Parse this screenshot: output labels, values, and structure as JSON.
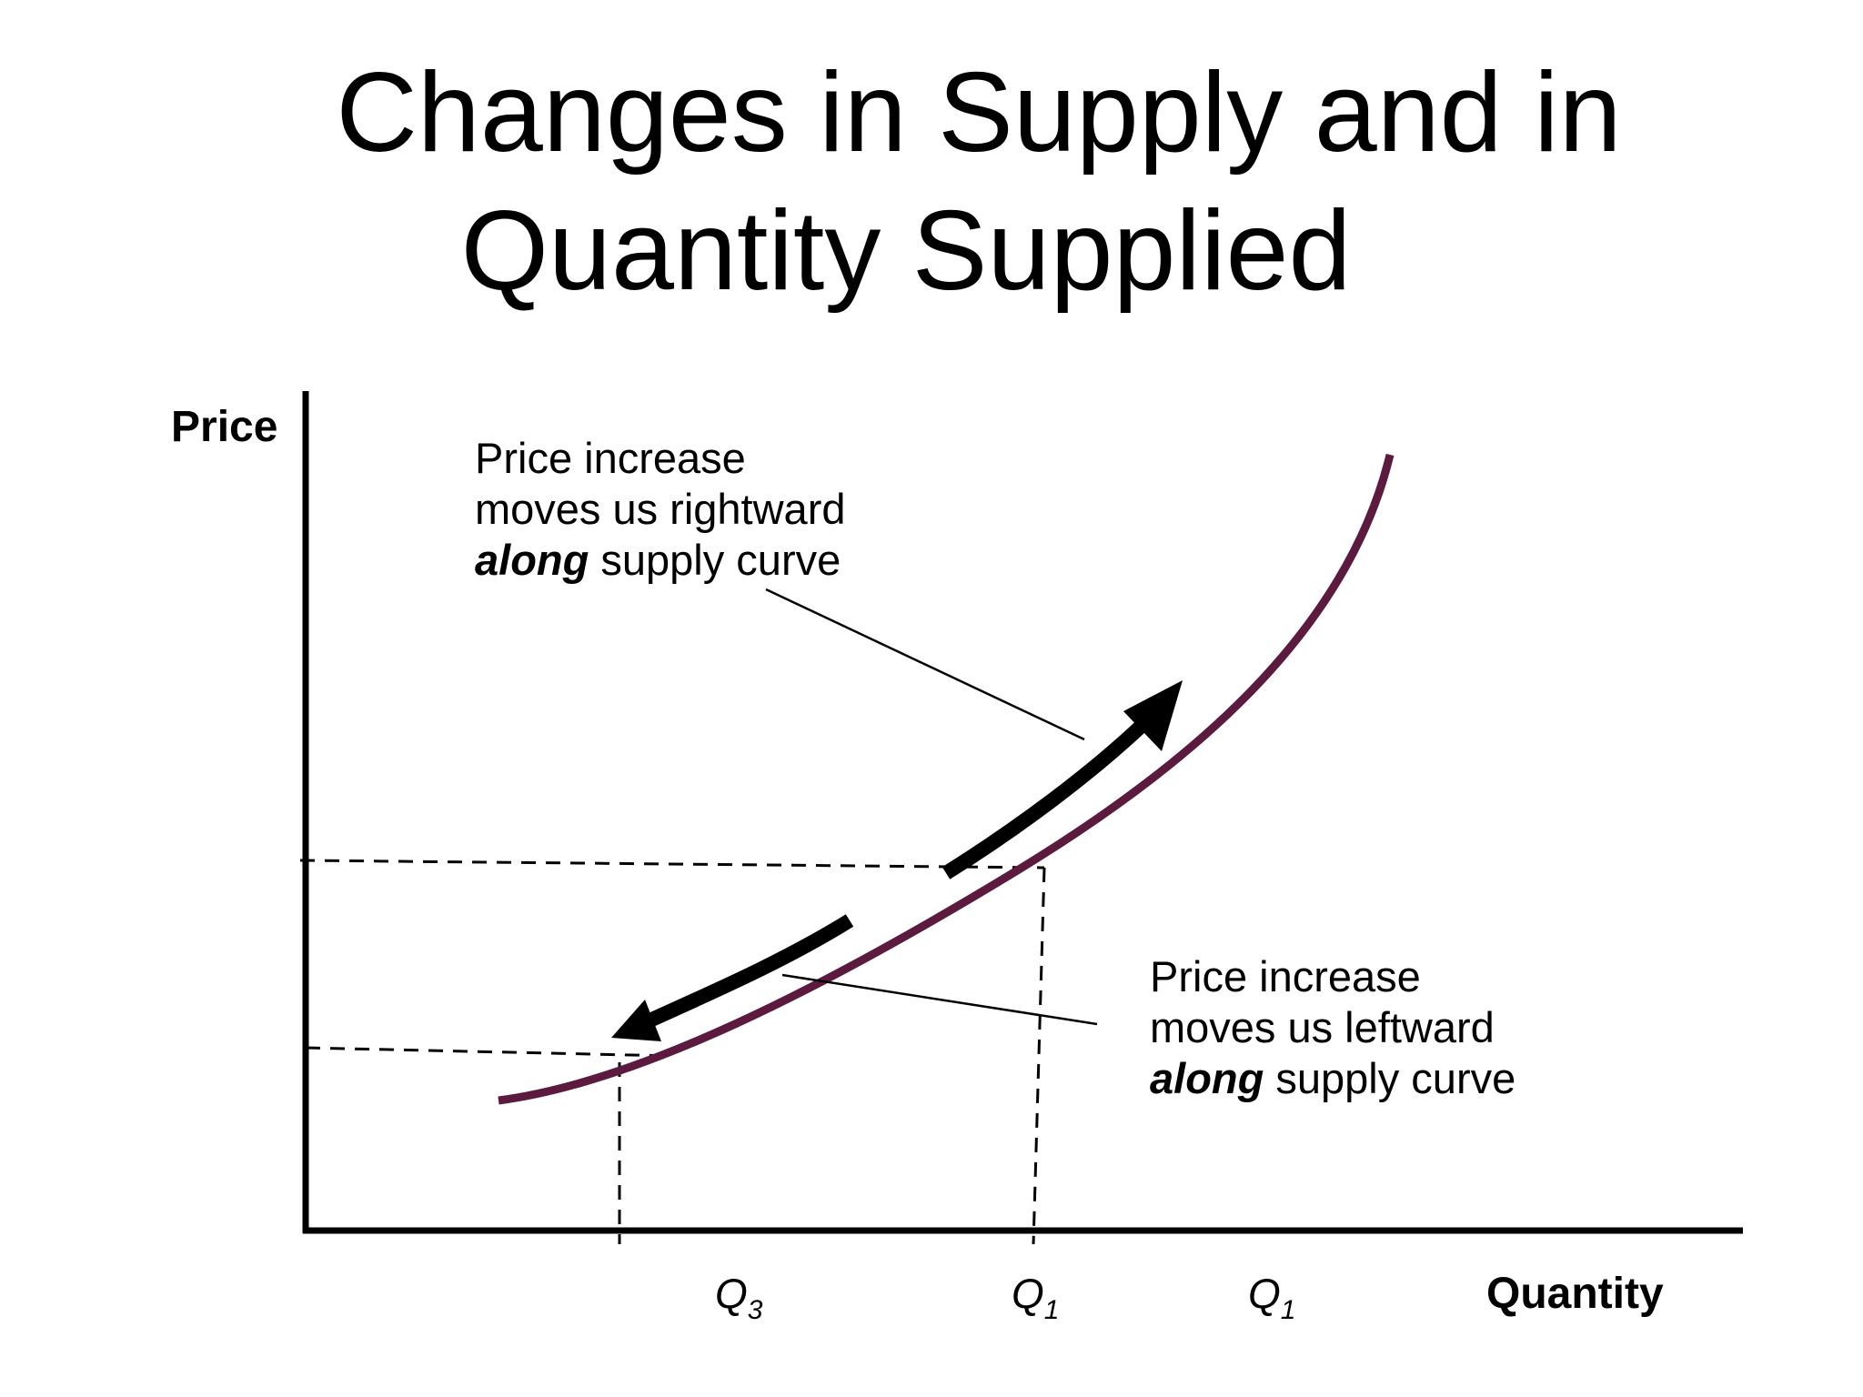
{
  "title": {
    "line1": "Changes in Supply and in",
    "line2": "Quantity Supplied"
  },
  "axes": {
    "y_label": "Price",
    "x_label": "Quantity"
  },
  "annotations": {
    "upper": {
      "line1": "Price increase",
      "line2": "moves us rightward",
      "emph": "along",
      "rest": " supply curve"
    },
    "lower": {
      "line1": "Price increase",
      "line2": "moves us leftward",
      "emph": "along",
      "rest": " supply curve"
    }
  },
  "x_ticks": [
    {
      "letter": "Q",
      "sub": "3"
    },
    {
      "letter": "Q",
      "sub": "1"
    },
    {
      "letter": "Q",
      "sub": "1"
    }
  ],
  "colors": {
    "supply_curve": "#5c1a3e",
    "axes": "#000000",
    "arrows": "#000000"
  }
}
